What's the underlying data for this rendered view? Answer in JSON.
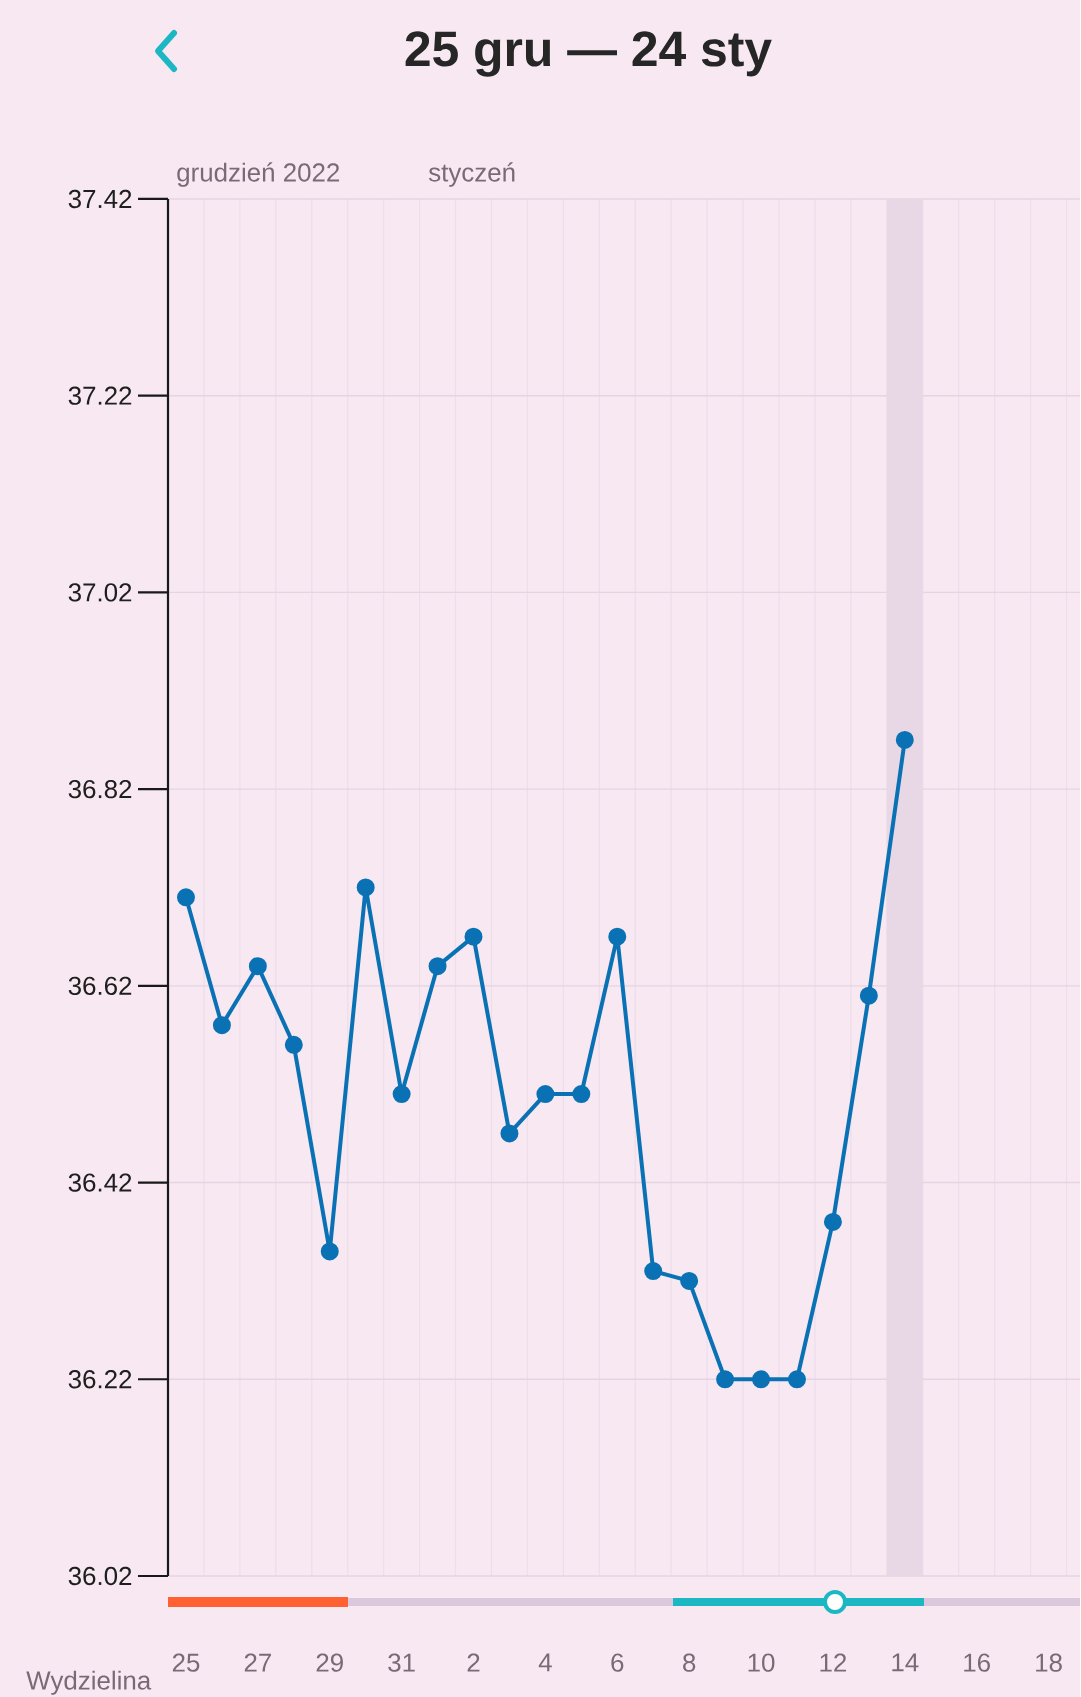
{
  "chart_data": {
    "type": "line",
    "title": "25 gru — 24 sty",
    "annotations": [
      "grudzień 2022",
      "styczeń",
      "Wydzielina"
    ],
    "series": [
      {
        "color": "#0a72b4",
        "x": [
          "2022-12-25",
          "2022-12-26",
          "2022-12-27",
          "2022-12-28",
          "2022-12-29",
          "2022-12-30",
          "2022-12-31",
          "2023-01-01",
          "2023-01-02",
          "2023-01-03",
          "2023-01-04",
          "2023-01-05",
          "2023-01-06",
          "2023-01-07",
          "2023-01-08",
          "2023-01-09",
          "2023-01-10",
          "2023-01-11",
          "2023-01-12",
          "2023-01-13",
          "2023-01-14"
        ],
        "values": [
          36.71,
          36.58,
          36.64,
          36.56,
          36.35,
          36.72,
          36.51,
          36.64,
          36.67,
          36.47,
          36.51,
          36.51,
          36.67,
          36.33,
          36.32,
          36.22,
          36.22,
          36.22,
          36.38,
          36.61,
          36.87
        ]
      }
    ],
    "xlim": [
      "2022-12-24T12:00",
      "2023-01-18T21:00"
    ],
    "xticks": [
      {
        "value": "2022-12-25",
        "label": "25"
      },
      {
        "value": "2022-12-27",
        "label": "27"
      },
      {
        "value": "2022-12-29",
        "label": "29"
      },
      {
        "value": "2022-12-31",
        "label": "31"
      },
      {
        "value": "2023-01-02",
        "label": "2"
      },
      {
        "value": "2023-01-04",
        "label": "4"
      },
      {
        "value": "2023-01-06",
        "label": "6"
      },
      {
        "value": "2023-01-08",
        "label": "8"
      },
      {
        "value": "2023-01-10",
        "label": "10"
      },
      {
        "value": "2023-01-12",
        "label": "12"
      },
      {
        "value": "2023-01-14",
        "label": "14"
      },
      {
        "value": "2023-01-16",
        "label": "16"
      },
      {
        "value": "2023-01-18",
        "label": "18"
      }
    ],
    "ylim": [
      36.02,
      37.42
    ],
    "yticks": [
      36.02,
      36.22,
      36.42,
      36.62,
      36.82,
      37.02,
      37.22,
      37.42
    ],
    "bands": [
      {
        "axis": "x",
        "from": "2023-01-13T12:00",
        "to": "2023-01-14T12:00"
      }
    ],
    "grid": true,
    "marker": "circle",
    "line_style": "solid"
  }
}
